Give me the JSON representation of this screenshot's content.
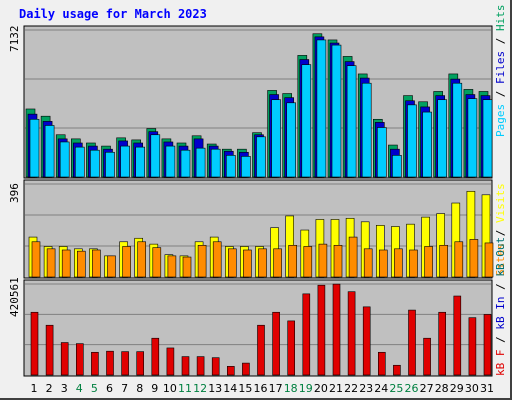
{
  "title": "Daily usage for March 2023",
  "colors": {
    "hits": "#00ccff",
    "files": "#0000cc",
    "pages": "#00a060",
    "visits": "#ffff00",
    "sites": "#ff8c00",
    "kbin": "#0000cc",
    "kbout": "#007070",
    "kbf": "#e00000",
    "weekend_label": "#008040",
    "weekday_label": "#000000"
  },
  "axis_max_labels": {
    "top": "7132",
    "middle": "396",
    "bottom": "420561"
  },
  "legend_top": [
    {
      "text": "Hits",
      "color": "#00a060"
    },
    {
      "text": " / ",
      "color": "#000000"
    },
    {
      "text": "Files",
      "color": "#0000cc"
    },
    {
      "text": " / ",
      "color": "#000000"
    },
    {
      "text": "Pages",
      "color": "#00ccff"
    }
  ],
  "legend_middle": [
    {
      "text": "Visits",
      "color": "#ffff00"
    },
    {
      "text": " / ",
      "color": "#000000"
    },
    {
      "text": "Sites",
      "color": "#ff8c00"
    }
  ],
  "legend_bottom": [
    {
      "text": "kB Out",
      "color": "#007070"
    },
    {
      "text": " / ",
      "color": "#000000"
    },
    {
      "text": "kB In",
      "color": "#0000cc"
    },
    {
      "text": " / ",
      "color": "#000000"
    },
    {
      "text": "kB F",
      "color": "#e00000"
    }
  ],
  "chart_data": {
    "type": "bar",
    "title": "Daily usage for March 2023",
    "categories": [
      "1",
      "2",
      "3",
      "4",
      "5",
      "6",
      "7",
      "8",
      "9",
      "10",
      "11",
      "12",
      "13",
      "14",
      "15",
      "16",
      "17",
      "18",
      "19",
      "20",
      "21",
      "22",
      "23",
      "24",
      "25",
      "26",
      "27",
      "28",
      "29",
      "30",
      "31"
    ],
    "weekend_days": [
      4,
      5,
      11,
      12,
      18,
      19,
      25,
      26
    ],
    "panels": [
      {
        "name": "hits_files_pages",
        "ymax": 7132,
        "series": [
          {
            "name": "Hits",
            "values": [
              3300,
              2950,
              2050,
              1850,
              1650,
              1500,
              1900,
              1800,
              2350,
              1850,
              1650,
              2000,
              1600,
              1350,
              1350,
              2150,
              4200,
              4050,
              5900,
              6950,
              6650,
              5850,
              5000,
              2800,
              1550,
              3950,
              3650,
              4150,
              5000,
              4250,
              4150
            ]
          },
          {
            "name": "Files",
            "values": [
              3050,
              2700,
              1850,
              1650,
              1500,
              1350,
              1750,
              1650,
              2200,
              1700,
              1500,
              1850,
              1500,
              1250,
              1200,
              2050,
              4000,
              3850,
              5700,
              6800,
              6500,
              5600,
              4800,
              2650,
              1350,
              3700,
              3400,
              3950,
              4750,
              4000,
              3950
            ]
          },
          {
            "name": "Pages",
            "values": [
              2800,
              2500,
              1700,
              1450,
              1300,
              1200,
              1500,
              1450,
              2050,
              1500,
              1300,
              1400,
              1350,
              1050,
              1000,
              1950,
              3750,
              3600,
              5450,
              6650,
              6400,
              5400,
              4550,
              2400,
              1050,
              3500,
              3150,
              3750,
              4550,
              3800,
              3750
            ]
          }
        ]
      },
      {
        "name": "visits_sites",
        "ymax": 396,
        "series": [
          {
            "name": "Visits",
            "values": [
              170,
              130,
              130,
              120,
              120,
              90,
              150,
              165,
              140,
              95,
              90,
              150,
              170,
              130,
              130,
              130,
              210,
              260,
              200,
              245,
              245,
              250,
              235,
              220,
              215,
              225,
              255,
              270,
              315,
              365,
              350
            ]
          },
          {
            "name": "Sites",
            "values": [
              150,
              120,
              115,
              110,
              115,
              90,
              130,
              150,
              125,
              90,
              85,
              135,
              150,
              120,
              115,
              120,
              120,
              135,
              130,
              140,
              135,
              170,
              120,
              115,
              120,
              115,
              130,
              135,
              150,
              160,
              145
            ]
          }
        ]
      },
      {
        "name": "kb_f",
        "ymax": 420561,
        "series": [
          {
            "name": "kB F",
            "values": [
              290000,
              230000,
              150000,
              145000,
              105000,
              110000,
              108000,
              108000,
              170000,
              125000,
              85000,
              85000,
              80000,
              40000,
              55000,
              230000,
              290000,
              250000,
              375000,
              415000,
              420000,
              385000,
              315000,
              105000,
              45000,
              300000,
              170000,
              290000,
              365000,
              265000,
              280000
            ]
          }
        ]
      }
    ]
  }
}
